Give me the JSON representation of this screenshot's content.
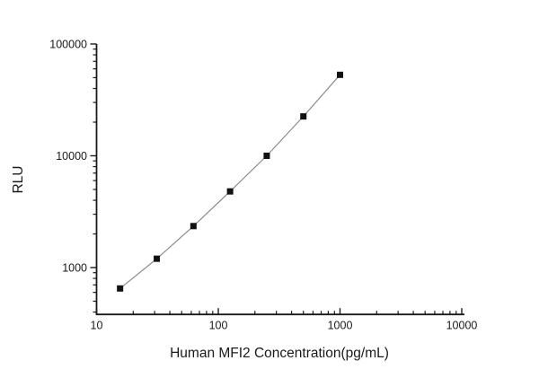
{
  "chart_data": {
    "type": "scatter",
    "subtype": "log-log standard curve with connecting line",
    "title": "",
    "xlabel": "Human MFI2 Concentration(pg/mL)",
    "ylabel": "RLU",
    "x_scale": "log",
    "y_scale": "log",
    "x": [
      15.6,
      31.25,
      62.5,
      125,
      250,
      500,
      1000
    ],
    "values": [
      650,
      1200,
      2350,
      4800,
      10000,
      22500,
      53000
    ],
    "xlim": [
      10,
      10000
    ],
    "ylim": [
      380,
      100000
    ],
    "x_ticks": [
      10,
      100,
      1000,
      10000
    ],
    "x_tick_labels": [
      "10",
      "100",
      "1000",
      "10000"
    ],
    "y_ticks": [
      1000,
      10000,
      100000
    ],
    "y_tick_labels": [
      "1000",
      "10000",
      "100000"
    ],
    "grid": false,
    "legend": "none",
    "marker": "filled-square",
    "marker_size_px": 7,
    "colors": {
      "marker": "#111111",
      "line": "#8c8c8c",
      "axis": "#1a1a1a",
      "text": "#1a1a1a",
      "background": "#ffffff"
    }
  }
}
